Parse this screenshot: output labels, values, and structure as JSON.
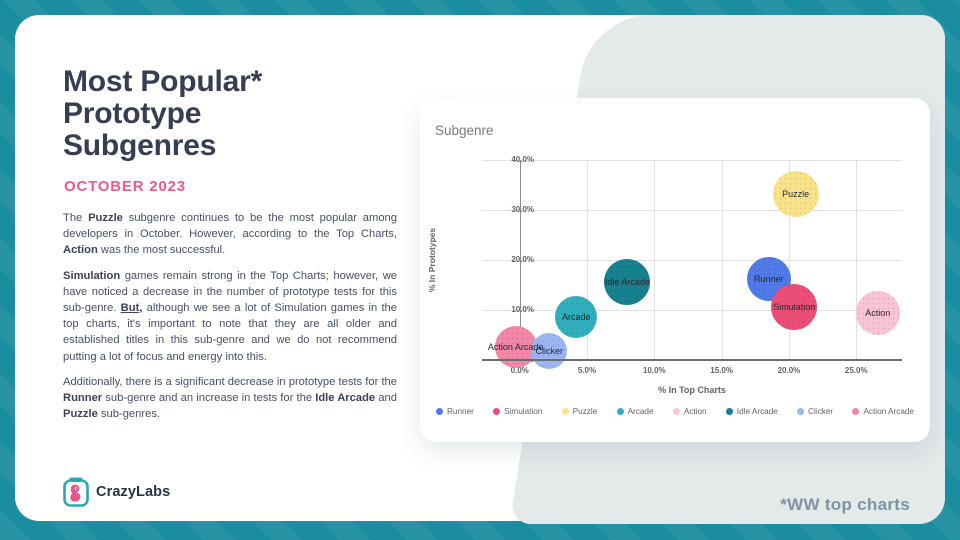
{
  "slide": {
    "title": "Most Popular*\nPrototype\nSubgenres",
    "subtitle": "OCTOBER 2023",
    "paragraphs": [
      [
        {
          "t": "The "
        },
        {
          "t": "Puzzle",
          "b": true
        },
        {
          "t": " subgenre continues to be the most popular among developers in October. However, according to the Top Charts, "
        },
        {
          "t": "Action",
          "b": true
        },
        {
          "t": " was the most successful."
        }
      ],
      [
        {
          "t": "Simulation",
          "b": true
        },
        {
          "t": " games remain strong in the Top Charts; however, we have noticed a decrease in the number of prototype tests for this sub-genre. "
        },
        {
          "t": "But,",
          "b": true,
          "u": true
        },
        {
          "t": " although we see a lot of Simulation games in the top charts, it's important to note that they are all older and established titles in this sub-genre and we do not recommend putting a lot of focus and energy into this."
        }
      ],
      [
        {
          "t": "Additionally, there is a significant decrease in prototype tests for the "
        },
        {
          "t": "Runner",
          "b": true
        },
        {
          "t": " sub-genre and an increase in tests for the "
        },
        {
          "t": "Idle Arcade",
          "b": true
        },
        {
          "t": " and "
        },
        {
          "t": "Puzzle",
          "b": true
        },
        {
          "t": " sub-genres."
        }
      ]
    ],
    "footnote": "*WW top charts",
    "logo_text": "CrazyLabs",
    "colors": {
      "teal_background": "#1b8da0",
      "accent_pink": "#f1588a",
      "title_navy": "#373d52",
      "gray_shape": "#e4e9ea"
    }
  },
  "chart_data": {
    "type": "bubble",
    "title": "Subgenre",
    "xlabel": "% In Top Charts",
    "ylabel": "% In Prototypes",
    "x_range": [
      -2.8,
      28.4
    ],
    "y_range": [
      0,
      40
    ],
    "x_ticks": [
      {
        "v": 0,
        "label": "0.0%"
      },
      {
        "v": 5,
        "label": "5.0%"
      },
      {
        "v": 10,
        "label": "10.0%"
      },
      {
        "v": 15,
        "label": "15.0%"
      },
      {
        "v": 20,
        "label": "20.0%"
      },
      {
        "v": 25,
        "label": "25.0%"
      }
    ],
    "y_ticks": [
      {
        "v": 0,
        "label": "0.0%"
      },
      {
        "v": 10,
        "label": "10.0%"
      },
      {
        "v": 20,
        "label": "20.0%"
      },
      {
        "v": 30,
        "label": "30.0%"
      },
      {
        "v": 40,
        "label": "40.0%"
      }
    ],
    "bubbles": [
      {
        "name": "Action Arcade",
        "x": -0.3,
        "y": 2.6,
        "r": 21,
        "color": "#f287a8",
        "label_z": 1
      },
      {
        "name": "Clicker",
        "x": 2.2,
        "y": 1.8,
        "r": 18,
        "color": "#9cb6f3",
        "label_z": 0
      },
      {
        "name": "Arcade",
        "x": 4.2,
        "y": 8.6,
        "r": 21,
        "color": "#31afbd",
        "label_z": 0
      },
      {
        "name": "Idle Arcade",
        "x": 8.0,
        "y": 15.6,
        "r": 23,
        "color": "#17818f",
        "label_z": 0
      },
      {
        "name": "Runner",
        "x": 18.5,
        "y": 16.3,
        "r": 22,
        "color": "#4f7ae8",
        "label_z": 0
      },
      {
        "name": "Simulation",
        "x": 20.4,
        "y": 10.6,
        "r": 23,
        "color": "#eb4f78",
        "label_z": 0
      },
      {
        "name": "Puzzle",
        "x": 20.5,
        "y": 33.2,
        "r": 23,
        "color": "#f8e38a",
        "label_z": 0
      },
      {
        "name": "Action",
        "x": 26.6,
        "y": 9.5,
        "r": 22,
        "color": "#f9c4d4",
        "label_z": 0
      }
    ],
    "legend": [
      {
        "name": "Runner",
        "color": "#4f7ae8"
      },
      {
        "name": "Simulation",
        "color": "#eb4f78"
      },
      {
        "name": "Puzzle",
        "color": "#f8e38a"
      },
      {
        "name": "Arcade",
        "color": "#31afbd"
      },
      {
        "name": "Action",
        "color": "#f9c4d4"
      },
      {
        "name": "Idle Arcade",
        "color": "#17818f"
      },
      {
        "name": "Clicker",
        "color": "#9cb6f3"
      },
      {
        "name": "Action Arcade",
        "color": "#f287a8"
      }
    ]
  }
}
